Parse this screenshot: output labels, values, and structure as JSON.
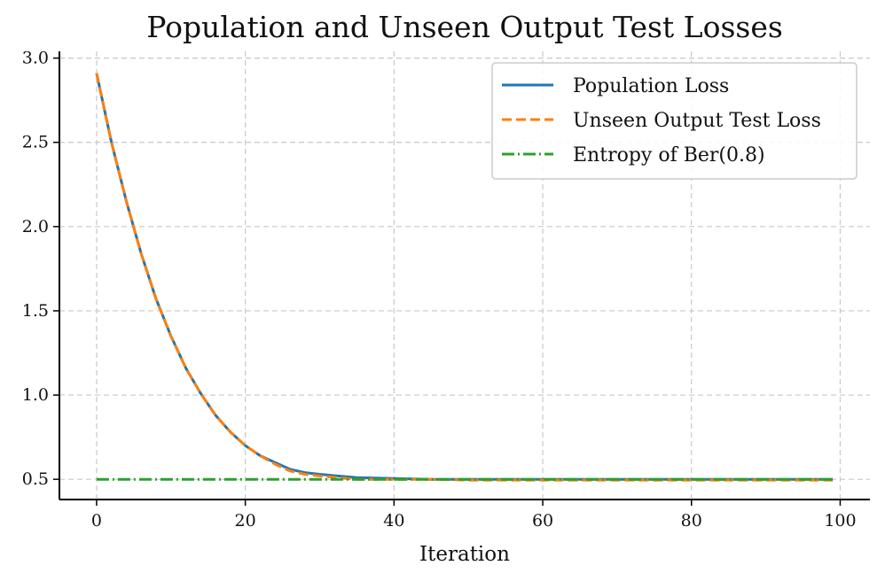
{
  "chart_data": {
    "type": "line",
    "title": "Population and Unseen Output Test Losses",
    "xlabel": "Iteration",
    "ylabel": "",
    "xlim": [
      -5,
      104
    ],
    "ylim": [
      0.38,
      3.04
    ],
    "x_ticks": [
      0,
      20,
      40,
      60,
      80,
      100
    ],
    "y_ticks": [
      0.5,
      1.0,
      1.5,
      2.0,
      2.5,
      3.0
    ],
    "x_tick_labels": [
      "0",
      "20",
      "40",
      "60",
      "80",
      "100"
    ],
    "y_tick_labels": [
      "0.5",
      "1.0",
      "1.5",
      "2.0",
      "2.5",
      "3.0"
    ],
    "grid": true,
    "legend_position": "top-right",
    "series": [
      {
        "name": "Population Loss",
        "color": "#1f77b4",
        "style": "solid",
        "x": [
          0,
          2,
          4,
          6,
          8,
          10,
          12,
          14,
          16,
          18,
          20,
          22,
          24,
          26,
          28,
          30,
          35,
          40,
          45,
          50,
          60,
          70,
          80,
          90,
          99
        ],
        "y": [
          2.91,
          2.5,
          2.15,
          1.84,
          1.57,
          1.35,
          1.16,
          1.01,
          0.88,
          0.78,
          0.7,
          0.64,
          0.6,
          0.56,
          0.54,
          0.53,
          0.51,
          0.505,
          0.5,
          0.5,
          0.5,
          0.5,
          0.5,
          0.5,
          0.5
        ]
      },
      {
        "name": "Unseen Output Test Loss",
        "color": "#ff7f0e",
        "style": "dashed",
        "x": [
          0,
          2,
          4,
          6,
          8,
          10,
          12,
          14,
          16,
          18,
          20,
          22,
          24,
          26,
          28,
          30,
          35,
          40,
          45,
          50,
          60,
          70,
          80,
          90,
          99
        ],
        "y": [
          2.91,
          2.5,
          2.15,
          1.84,
          1.57,
          1.35,
          1.16,
          1.01,
          0.88,
          0.78,
          0.7,
          0.64,
          0.59,
          0.55,
          0.53,
          0.52,
          0.5,
          0.5,
          0.5,
          0.495,
          0.495,
          0.495,
          0.495,
          0.495,
          0.495
        ]
      },
      {
        "name": "Entropy of Ber(0.8)",
        "color": "#2ca02c",
        "style": "dashdot",
        "x": [
          0,
          99
        ],
        "y": [
          0.5,
          0.5
        ]
      }
    ]
  }
}
